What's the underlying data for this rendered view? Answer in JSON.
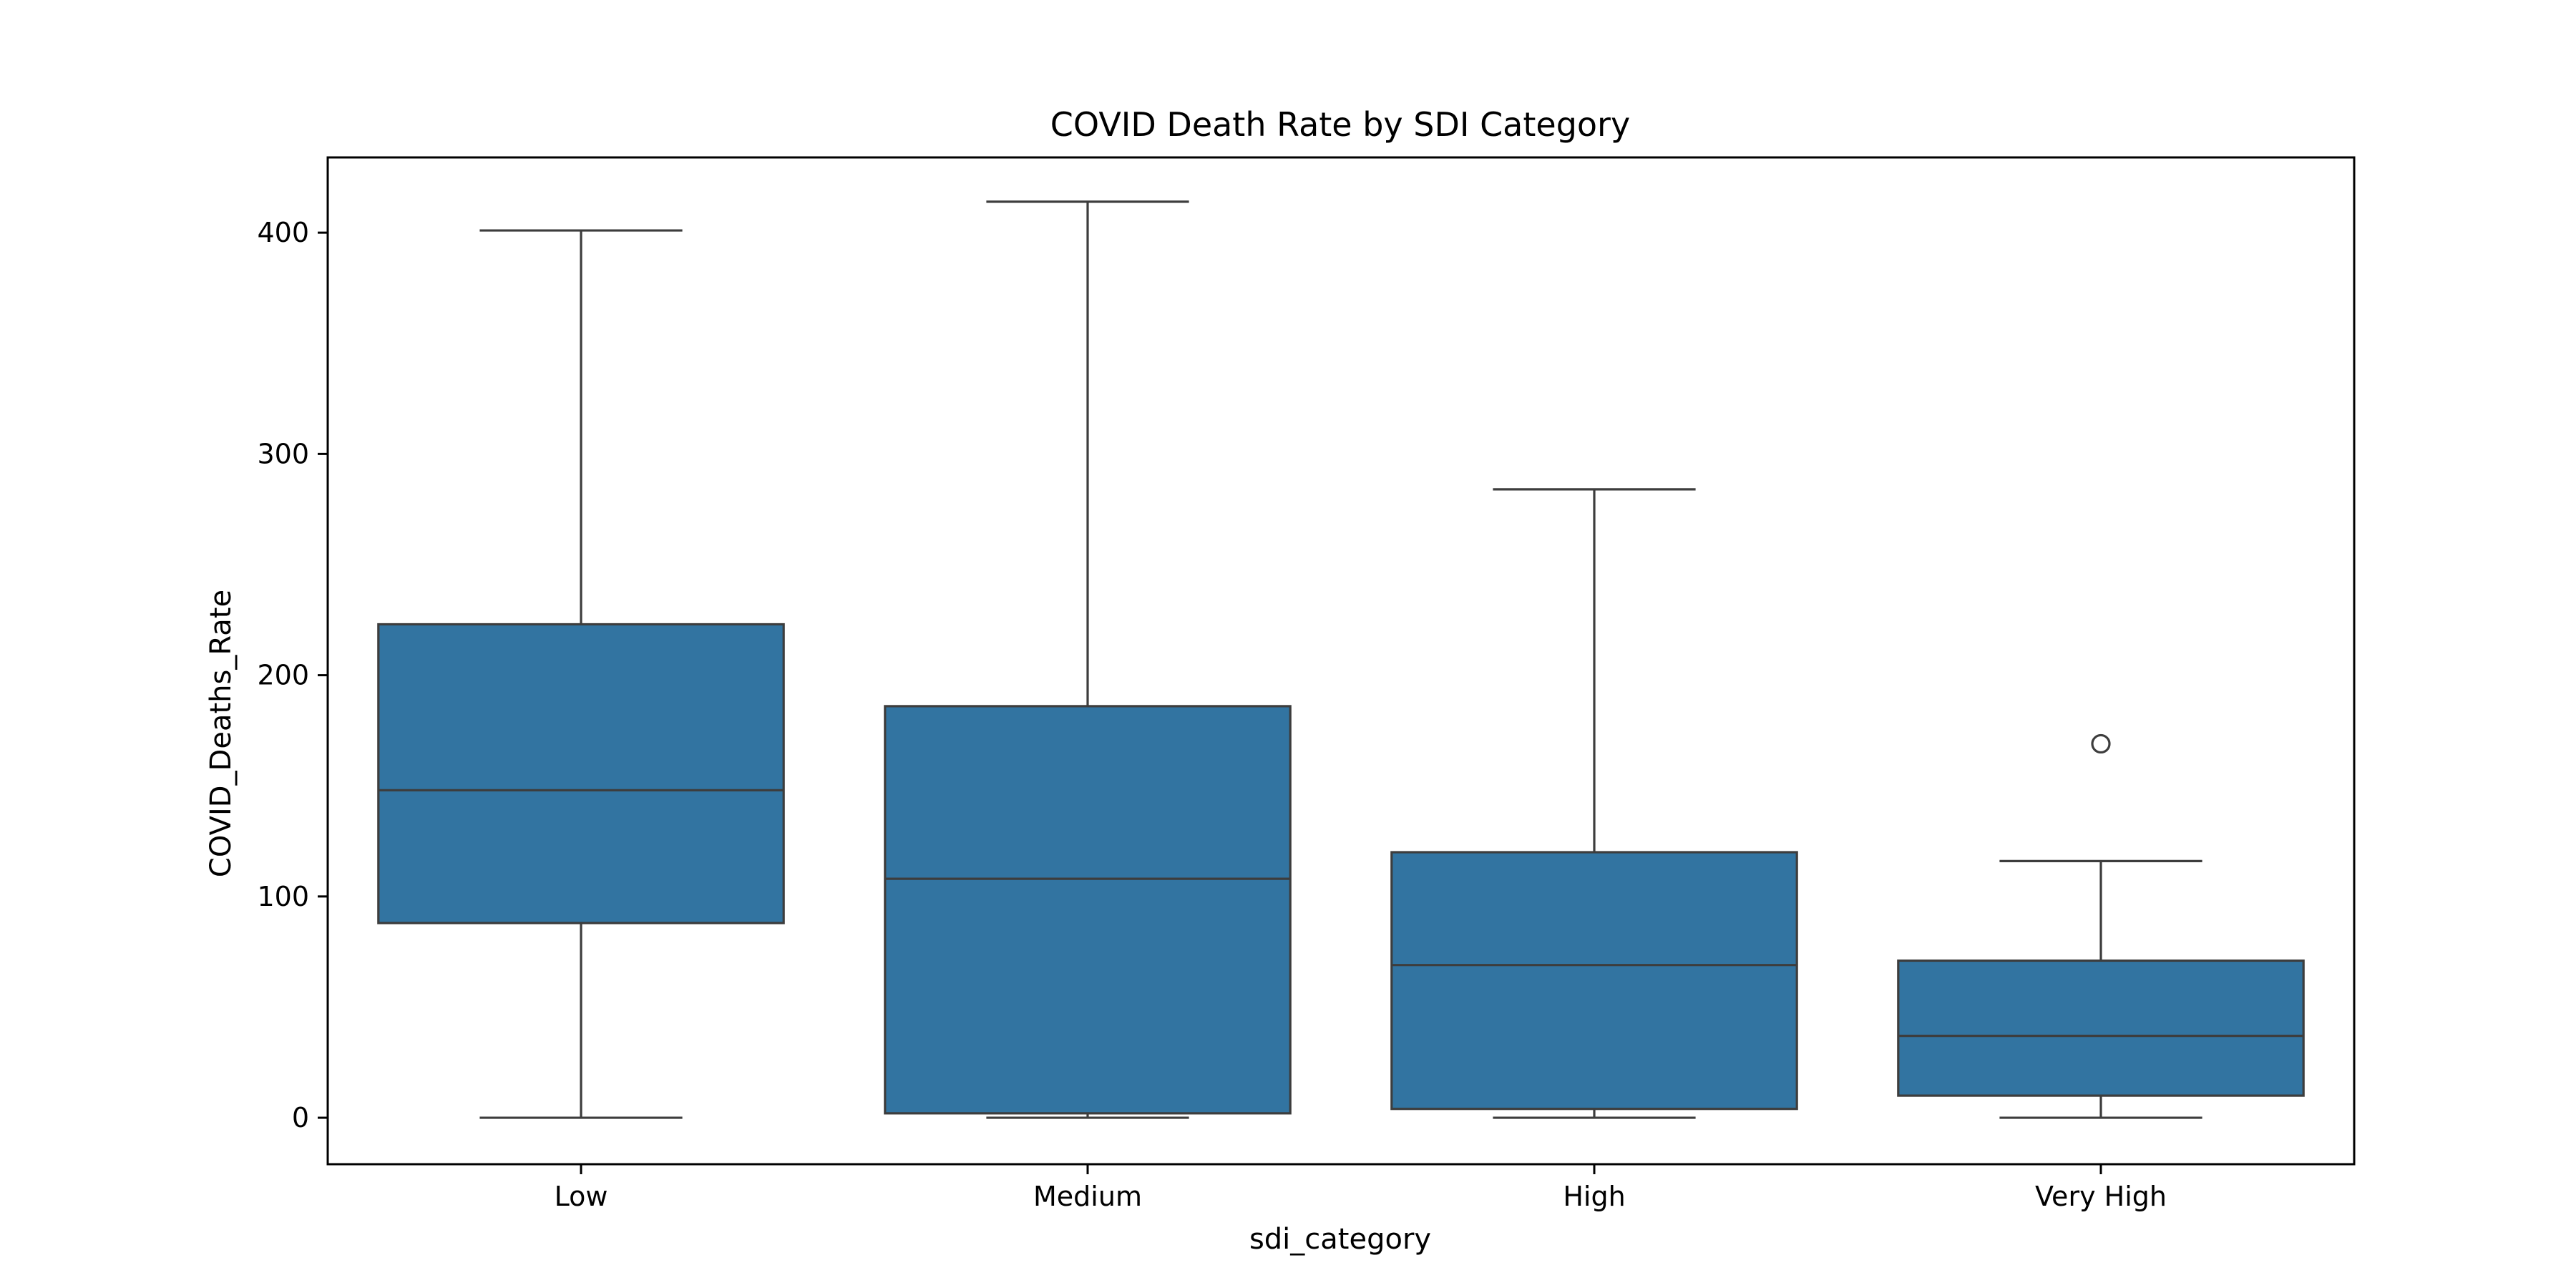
{
  "chart_data": {
    "type": "box",
    "title": "COVID Death Rate by SDI Category",
    "xlabel": "sdi_category",
    "ylabel": "COVID_Deaths_Rate",
    "ylim": [
      -21,
      434
    ],
    "yticks": [
      0,
      100,
      200,
      300,
      400
    ],
    "categories": [
      "Low",
      "Medium",
      "High",
      "Very High"
    ],
    "boxes": [
      {
        "category": "Low",
        "whisker_low": 0,
        "q1": 88,
        "median": 148,
        "q3": 223,
        "whisker_high": 401,
        "outliers": []
      },
      {
        "category": "Medium",
        "whisker_low": 0,
        "q1": 2,
        "median": 108,
        "q3": 186,
        "whisker_high": 414,
        "outliers": []
      },
      {
        "category": "High",
        "whisker_low": 0,
        "q1": 4,
        "median": 69,
        "q3": 120,
        "whisker_high": 284,
        "outliers": []
      },
      {
        "category": "Very High",
        "whisker_low": 0,
        "q1": 10,
        "median": 37,
        "q3": 71,
        "whisker_high": 116,
        "outliers": [
          169
        ]
      }
    ],
    "colors": {
      "box_fill": "#3274a1",
      "line": "#3d3d3d",
      "axes": "#000000"
    },
    "grid": false,
    "legend": "none"
  }
}
